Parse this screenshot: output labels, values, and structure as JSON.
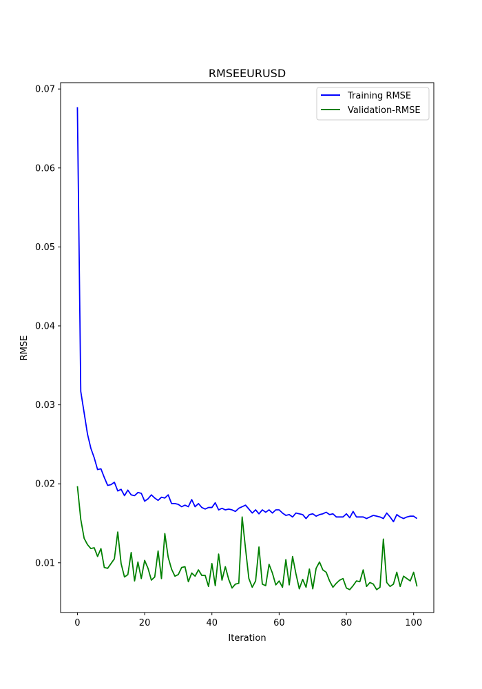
{
  "chart_data": {
    "type": "line",
    "title": "RMSEEURUSD",
    "xlabel": "Iteration",
    "ylabel": "RMSE",
    "xlim": [
      -5,
      106
    ],
    "ylim": [
      0.0037,
      0.0708
    ],
    "xticks": [
      0,
      20,
      40,
      60,
      80,
      100
    ],
    "yticks": [
      0.01,
      0.02,
      0.03,
      0.04,
      0.05,
      0.06,
      0.07
    ],
    "xtick_labels": [
      "0",
      "20",
      "40",
      "60",
      "80",
      "100"
    ],
    "ytick_labels": [
      "0.01",
      "0.02",
      "0.03",
      "0.04",
      "0.05",
      "0.06",
      "0.07"
    ],
    "grid": false,
    "legend_position": "top-right",
    "series": [
      {
        "name": "Training RMSE",
        "color": "#0000ff",
        "values": [
          0.0677,
          0.0317,
          0.029,
          0.0263,
          0.0245,
          0.0233,
          0.0218,
          0.0219,
          0.0208,
          0.0198,
          0.0199,
          0.0202,
          0.0191,
          0.0193,
          0.0185,
          0.0192,
          0.0186,
          0.0185,
          0.0189,
          0.0188,
          0.0178,
          0.0181,
          0.0186,
          0.0182,
          0.0179,
          0.0183,
          0.0182,
          0.0186,
          0.0175,
          0.0175,
          0.0174,
          0.0171,
          0.0173,
          0.0171,
          0.018,
          0.0171,
          0.0175,
          0.017,
          0.0168,
          0.017,
          0.017,
          0.0176,
          0.0167,
          0.0169,
          0.0167,
          0.0168,
          0.0167,
          0.0165,
          0.0169,
          0.0171,
          0.0173,
          0.0168,
          0.0163,
          0.0167,
          0.0162,
          0.0167,
          0.0164,
          0.0167,
          0.0163,
          0.0167,
          0.0167,
          0.0163,
          0.016,
          0.0161,
          0.0158,
          0.0163,
          0.0162,
          0.0161,
          0.0156,
          0.0161,
          0.0162,
          0.0159,
          0.0161,
          0.0162,
          0.0164,
          0.0161,
          0.0162,
          0.0158,
          0.0158,
          0.0158,
          0.0162,
          0.0157,
          0.0165,
          0.0158,
          0.0158,
          0.0158,
          0.0156,
          0.0158,
          0.016,
          0.0159,
          0.0158,
          0.0156,
          0.0163,
          0.0158,
          0.0152,
          0.0161,
          0.0158,
          0.0156,
          0.0158,
          0.0159,
          0.0159,
          0.0156
        ]
      },
      {
        "name": "Validation-RMSE",
        "color": "#008000",
        "values": [
          0.0197,
          0.0155,
          0.0131,
          0.0123,
          0.0118,
          0.0119,
          0.0108,
          0.0118,
          0.0094,
          0.0093,
          0.0099,
          0.0105,
          0.0139,
          0.0099,
          0.0082,
          0.0085,
          0.0113,
          0.0077,
          0.0101,
          0.008,
          0.0103,
          0.0093,
          0.0078,
          0.0082,
          0.0115,
          0.008,
          0.0137,
          0.0107,
          0.0092,
          0.0083,
          0.0085,
          0.0094,
          0.0095,
          0.0076,
          0.0087,
          0.0083,
          0.0091,
          0.0084,
          0.0084,
          0.007,
          0.0099,
          0.0071,
          0.0111,
          0.0078,
          0.0095,
          0.0079,
          0.0068,
          0.0073,
          0.0074,
          0.0158,
          0.0118,
          0.008,
          0.0069,
          0.0077,
          0.012,
          0.0073,
          0.0071,
          0.0098,
          0.0087,
          0.0072,
          0.0077,
          0.0069,
          0.0104,
          0.0072,
          0.0108,
          0.0086,
          0.0067,
          0.0079,
          0.0069,
          0.0092,
          0.0067,
          0.0093,
          0.0101,
          0.0091,
          0.0088,
          0.0077,
          0.0069,
          0.0074,
          0.0078,
          0.008,
          0.0068,
          0.0066,
          0.0071,
          0.0077,
          0.0076,
          0.0091,
          0.007,
          0.0075,
          0.0073,
          0.0066,
          0.0069,
          0.013,
          0.0075,
          0.007,
          0.0073,
          0.0088,
          0.007,
          0.0083,
          0.008,
          0.0077,
          0.0088,
          0.007
        ]
      }
    ]
  }
}
